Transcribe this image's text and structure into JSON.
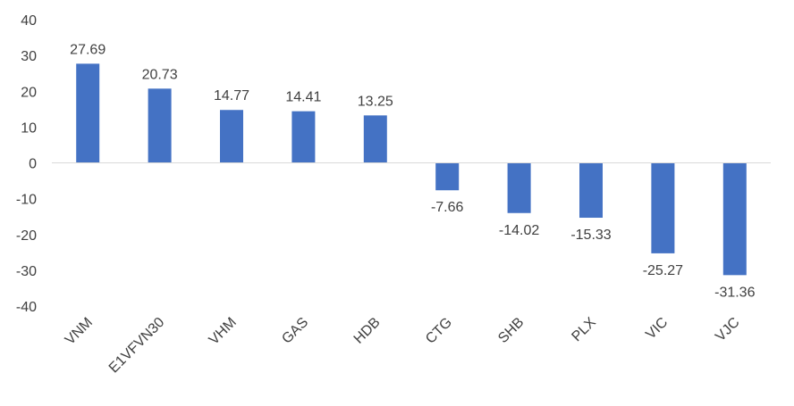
{
  "chart_data": {
    "type": "bar",
    "title": "",
    "xlabel": "",
    "ylabel": "",
    "categories": [
      "VNM",
      "E1VFVN30",
      "VHM",
      "GAS",
      "HDB",
      "CTG",
      "SHB",
      "PLX",
      "VIC",
      "VJC"
    ],
    "values": [
      27.69,
      20.73,
      14.77,
      14.41,
      13.25,
      -7.66,
      -14.02,
      -15.33,
      -25.27,
      -31.36
    ],
    "data_labels": [
      "27.69",
      "20.73",
      "14.77",
      "14.41",
      "13.25",
      "-7.66",
      "-14.02",
      "-15.33",
      "-25.27",
      "-31.36"
    ],
    "ylim": [
      -40,
      40
    ],
    "yticks": [
      40,
      30,
      20,
      10,
      0,
      -10,
      -20,
      -30,
      -40
    ],
    "grid": false,
    "legend": "none",
    "bar_color": "#4472C4",
    "axis_color": "#D9D9D9"
  }
}
